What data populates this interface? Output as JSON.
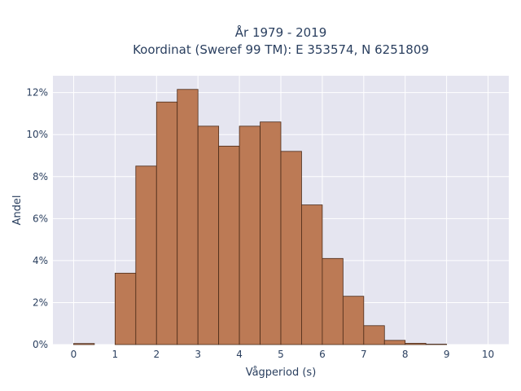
{
  "chart_data": {
    "type": "bar",
    "title_line1": "År 1979 - 2019",
    "title_line2": "Koordinat (Sweref 99 TM): E 353574, N 6251809",
    "xlabel": "Vågperiod (s)",
    "ylabel": "Andel",
    "bin_width": 0.5,
    "bins": [
      {
        "start": 0.0,
        "value": 0.05
      },
      {
        "start": 0.5,
        "value": 0.0
      },
      {
        "start": 1.0,
        "value": 3.4
      },
      {
        "start": 1.5,
        "value": 8.5
      },
      {
        "start": 2.0,
        "value": 11.55
      },
      {
        "start": 2.5,
        "value": 12.15
      },
      {
        "start": 3.0,
        "value": 10.4
      },
      {
        "start": 3.5,
        "value": 9.45
      },
      {
        "start": 4.0,
        "value": 10.4
      },
      {
        "start": 4.5,
        "value": 10.6
      },
      {
        "start": 5.0,
        "value": 9.2
      },
      {
        "start": 5.5,
        "value": 6.65
      },
      {
        "start": 6.0,
        "value": 4.1
      },
      {
        "start": 6.5,
        "value": 2.3
      },
      {
        "start": 7.0,
        "value": 0.9
      },
      {
        "start": 7.5,
        "value": 0.2
      },
      {
        "start": 8.0,
        "value": 0.06
      },
      {
        "start": 8.5,
        "value": 0.02
      }
    ],
    "xlim": [
      -0.5,
      10.5
    ],
    "ylim": [
      0,
      12.8
    ],
    "x_ticks": [
      0,
      1,
      2,
      3,
      4,
      5,
      6,
      7,
      8,
      9,
      10
    ],
    "x_tick_labels": [
      "0",
      "1",
      "2",
      "3",
      "4",
      "5",
      "6",
      "7",
      "8",
      "9",
      "10"
    ],
    "y_ticks": [
      0,
      2,
      4,
      6,
      8,
      10,
      12
    ],
    "y_tick_labels": [
      "0%",
      "2%",
      "4%",
      "6%",
      "8%",
      "10%",
      "12%"
    ],
    "grid": true,
    "colors": {
      "bar_fill": "#bc7a55",
      "bar_stroke": "#4a2a18",
      "plot_bg": "#e5e5f0",
      "grid": "#ffffff",
      "text": "#2a3f5f"
    }
  }
}
